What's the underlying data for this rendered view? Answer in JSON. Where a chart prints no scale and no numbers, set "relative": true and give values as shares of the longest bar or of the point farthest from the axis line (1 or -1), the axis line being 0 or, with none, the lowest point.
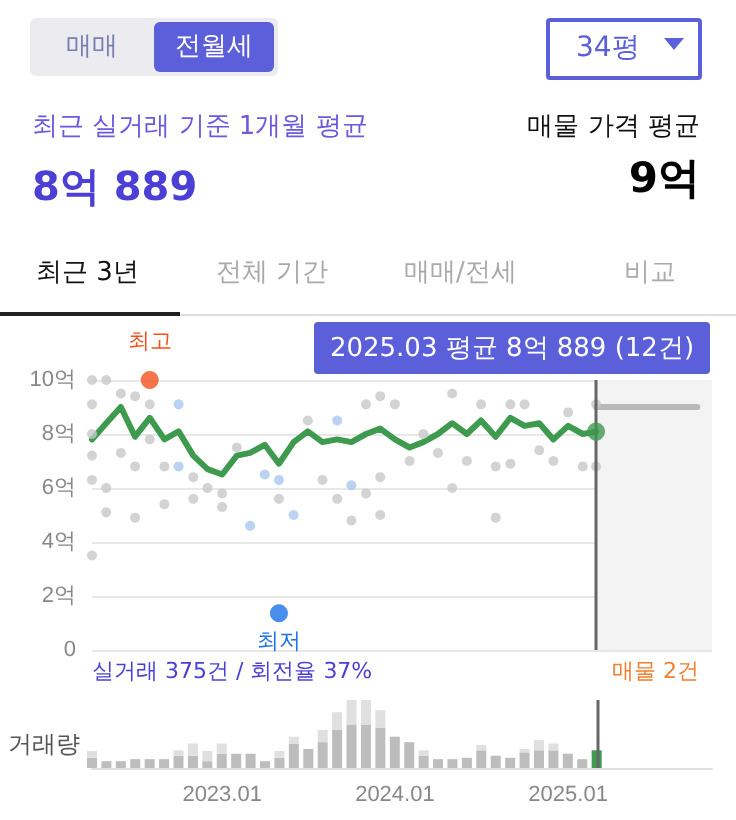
{
  "chart_data": [
    {
      "type": "other",
      "annotations": [
        "매매",
        "전월세",
        "34평",
        "최근 실거래 기준 1개월 평균",
        "8억 889",
        "매물 가격 평균",
        "9억",
        "최근 3년",
        "전체 기간",
        "매매/전세",
        "비교"
      ]
    },
    {
      "type": "line",
      "x": [
        "2022-04",
        "2022-05",
        "2022-06",
        "2022-07",
        "2022-08",
        "2022-09",
        "2022-10",
        "2022-11",
        "2022-12",
        "2023-01",
        "2023-02",
        "2023-03",
        "2023-04",
        "2023-05",
        "2023-06",
        "2023-07",
        "2023-08",
        "2023-09",
        "2023-10",
        "2023-11",
        "2023-12",
        "2024-01",
        "2024-02",
        "2024-03",
        "2024-04",
        "2024-05",
        "2024-06",
        "2024-07",
        "2024-08",
        "2024-09",
        "2024-10",
        "2024-11",
        "2024-12",
        "2025-01",
        "2025-02",
        "2025-03"
      ],
      "series": [
        {
          "type": "scatter",
          "marker": "circle",
          "color": "#c8c8c8",
          "x": [
            "2022-04",
            "2022-04",
            "2022-04",
            "2022-04",
            "2022-04",
            "2022-04",
            "2022-05",
            "2022-05",
            "2022-05",
            "2022-06",
            "2022-06",
            "2022-07",
            "2022-07",
            "2022-07",
            "2022-08",
            "2022-08",
            "2022-09",
            "2022-09",
            "2022-11",
            "2022-11",
            "2022-12",
            "2023-01",
            "2023-01",
            "2023-02",
            "2023-05",
            "2023-07",
            "2023-08",
            "2023-09",
            "2023-10",
            "2023-11",
            "2023-11",
            "2023-12",
            "2023-12",
            "2023-12",
            "2024-01",
            "2024-02",
            "2024-03",
            "2024-04",
            "2024-05",
            "2024-05",
            "2024-06",
            "2024-07",
            "2024-08",
            "2024-08",
            "2024-09",
            "2024-09",
            "2024-10",
            "2024-11",
            "2024-12",
            "2025-01",
            "2025-02",
            "2025-03",
            "2025-03"
          ],
          "values": [
            10.0,
            9.1,
            8.0,
            7.2,
            6.3,
            3.5,
            10.0,
            6.0,
            5.1,
            9.5,
            7.3,
            9.4,
            6.8,
            4.9,
            9.1,
            7.8,
            6.8,
            5.4,
            6.4,
            5.6,
            6.0,
            5.8,
            5.3,
            7.5,
            5.6,
            8.5,
            6.3,
            5.6,
            4.8,
            9.1,
            5.8,
            9.4,
            6.4,
            5.0,
            9.1,
            7.0,
            8.0,
            7.3,
            9.5,
            6.0,
            7.0,
            9.1,
            6.8,
            4.9,
            9.1,
            6.9,
            9.1,
            7.4,
            7.0,
            8.8,
            6.8,
            9.1,
            6.8
          ]
        },
        {
          "type": "scatter",
          "marker": "circle",
          "color": "#a9c8f0",
          "x": [
            "2022-10",
            "2022-10",
            "2023-03",
            "2023-04",
            "2023-05",
            "2023-06",
            "2023-09",
            "2023-10"
          ],
          "values": [
            9.1,
            6.8,
            4.6,
            6.5,
            6.3,
            5.0,
            8.5,
            6.1
          ]
        },
        {
          "color": "#3d9a4f",
          "marker": "none",
          "values": [
            7.8,
            8.4,
            9.0,
            7.9,
            8.6,
            7.8,
            8.1,
            7.2,
            6.7,
            6.5,
            7.2,
            7.3,
            7.6,
            6.9,
            7.7,
            8.1,
            7.7,
            7.8,
            7.7,
            8.0,
            8.2,
            7.8,
            7.5,
            7.7,
            8.0,
            8.4,
            8.0,
            8.5,
            7.9,
            8.6,
            8.3,
            8.4,
            7.8,
            8.3,
            8.0,
            8.0889
          ]
        },
        {
          "color": "#b8b8b8",
          "marker": "none",
          "x": [
            "2025-03",
            "2025-10"
          ],
          "values": [
            9.0,
            9.0
          ]
        },
        {
          "type": "scatter",
          "marker": "circle",
          "colors": [
            "#f4511e",
            "#1a73e8",
            "#3d9a4f"
          ],
          "x": [
            "2022-08",
            "2023-05",
            "2025-03"
          ],
          "values": [
            10.0,
            1.36,
            8.0889
          ]
        }
      ],
      "xlim": [
        "2022-04",
        "2025-11"
      ],
      "ylim": [
        0,
        10
      ],
      "yticks": [
        {
          "value": 0,
          "label": "0"
        },
        {
          "value": 2,
          "label": "2억"
        },
        {
          "value": 4,
          "label": "4억"
        },
        {
          "value": 6,
          "label": "6억"
        },
        {
          "value": 8,
          "label": "8억"
        },
        {
          "value": 10,
          "label": "10억"
        }
      ],
      "tick_labels": "y",
      "grid": "y",
      "line_style": "solid",
      "ref_lines": [
        {
          "axis": "x",
          "value": "2025-03",
          "color": "#666666"
        }
      ],
      "bands": [
        {
          "axis": "x",
          "from": "2025-03",
          "to": "2025-11",
          "color": "#f3f3f3"
        }
      ],
      "annotations": [
        {
          "text": "최고",
          "x": "2022-08",
          "y": 10.0
        },
        {
          "text": "최저",
          "x": "2023-05",
          "y": 1.36
        },
        {
          "text": "2025.03 평균 8억 889 (12건)",
          "x": "2025-03",
          "y": 8.0889
        },
        "실거래 375건 / 회전율 37%",
        "매물 2건"
      ]
    },
    {
      "type": "bar",
      "stacked": true,
      "relative": true,
      "ylabel": "거래량",
      "x": [
        "2022-04",
        "2022-05",
        "2022-06",
        "2022-07",
        "2022-08",
        "2022-09",
        "2022-10",
        "2022-11",
        "2022-12",
        "2023-01",
        "2023-02",
        "2023-03",
        "2023-04",
        "2023-05",
        "2023-06",
        "2023-07",
        "2023-08",
        "2023-09",
        "2023-10",
        "2023-11",
        "2023-12",
        "2024-01",
        "2024-02",
        "2024-03",
        "2024-04",
        "2024-05",
        "2024-06",
        "2024-07",
        "2024-08",
        "2024-09",
        "2024-10",
        "2024-11",
        "2024-12",
        "2025-01",
        "2025-02",
        "2025-03"
      ],
      "series": [
        {
          "color": "#bdbdbd",
          "colors": [
            "#bdbdbd",
            "#bdbdbd",
            "#bdbdbd",
            "#bdbdbd",
            "#bdbdbd",
            "#bdbdbd",
            "#bdbdbd",
            "#bdbdbd",
            "#bdbdbd",
            "#bdbdbd",
            "#bdbdbd",
            "#bdbdbd",
            "#bdbdbd",
            "#bdbdbd",
            "#bdbdbd",
            "#bdbdbd",
            "#bdbdbd",
            "#bdbdbd",
            "#bdbdbd",
            "#bdbdbd",
            "#bdbdbd",
            "#bdbdbd",
            "#bdbdbd",
            "#bdbdbd",
            "#bdbdbd",
            "#bdbdbd",
            "#bdbdbd",
            "#bdbdbd",
            "#bdbdbd",
            "#bdbdbd",
            "#bdbdbd",
            "#bdbdbd",
            "#bdbdbd",
            "#bdbdbd",
            "#bdbdbd",
            "#3d9a4f"
          ],
          "values": [
            0.15,
            0.1,
            0.1,
            0.13,
            0.13,
            0.13,
            0.18,
            0.18,
            0.1,
            0.21,
            0.21,
            0.21,
            0.1,
            0.15,
            0.36,
            0.28,
            0.38,
            0.56,
            0.64,
            0.64,
            0.59,
            0.46,
            0.38,
            0.18,
            0.13,
            0.13,
            0.15,
            0.26,
            0.18,
            0.15,
            0.23,
            0.26,
            0.26,
            0.21,
            0.13,
            0.26
          ]
        },
        {
          "color": "#e0e0e0",
          "values": [
            0.1,
            0,
            0,
            0,
            0,
            0,
            0.08,
            0.18,
            0.15,
            0.15,
            0,
            0,
            0,
            0.1,
            0.1,
            0,
            0.18,
            0.26,
            0.36,
            0.36,
            0.26,
            0,
            0,
            0.08,
            0,
            0,
            0,
            0.08,
            0,
            0,
            0.05,
            0.15,
            0.1,
            0,
            0,
            0
          ]
        }
      ],
      "xlim": [
        "2022-04",
        "2025-11"
      ],
      "xticks": [
        {
          "value": "2023-01",
          "label": "2023.01"
        },
        {
          "value": "2024-01",
          "label": "2024.01"
        },
        {
          "value": "2025-01",
          "label": "2025.01"
        }
      ],
      "tick_labels": "x",
      "grid": false,
      "ref_lines": [
        {
          "axis": "x",
          "value": "2025-03",
          "color": "#666666"
        }
      ]
    }
  ]
}
